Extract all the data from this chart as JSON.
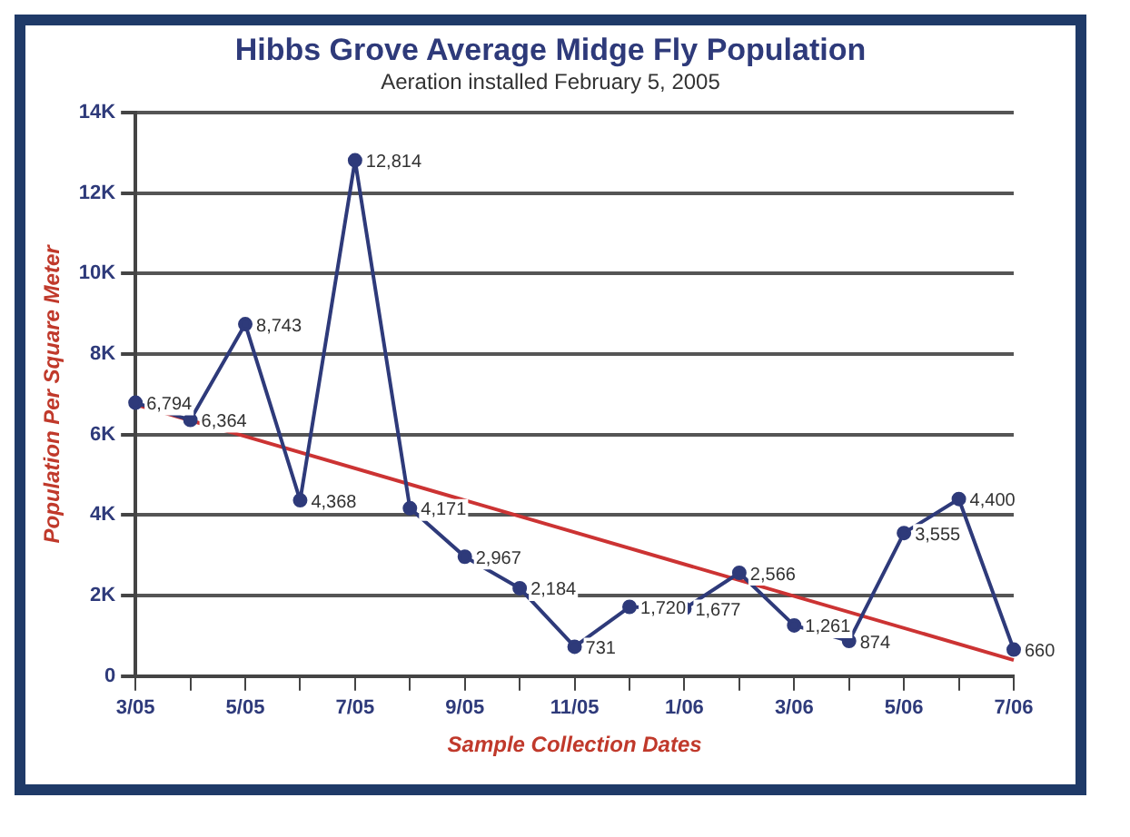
{
  "chart_data": {
    "type": "line",
    "title": "Hibbs Grove Average Midge Fly Population",
    "subtitle": "Aeration installed February 5, 2005",
    "xlabel": "Sample Collection Dates",
    "ylabel": "Population Per Square Meter",
    "categories": [
      "3/05",
      null,
      "5/05",
      null,
      "7/05",
      null,
      "9/05",
      null,
      "11/05",
      null,
      "1/06",
      null,
      "3/06",
      null,
      "5/06",
      null,
      "7/06"
    ],
    "series": [
      {
        "color": "#2e3a7a",
        "marker": "circle",
        "values": [
          6794,
          6364,
          8743,
          4368,
          12814,
          4171,
          2967,
          2184,
          731,
          1720,
          1677,
          2566,
          1261,
          874,
          3555,
          4400,
          660
        ],
        "value_labels": [
          "6,794",
          "6,364",
          "8,743",
          "4,368",
          "12,814",
          "4,171",
          "2,967",
          "2,184",
          "731",
          "1,720",
          "1,677",
          "2,566",
          "1,261",
          "874",
          "3,555",
          "4,400",
          "660"
        ]
      },
      {
        "type": "line",
        "color": "#cc3333",
        "marker": "none",
        "values": [
          6750,
          null,
          null,
          null,
          null,
          null,
          null,
          null,
          null,
          null,
          null,
          null,
          null,
          null,
          null,
          null,
          400
        ]
      }
    ],
    "ylim": [
      0,
      14000
    ],
    "yticks": [
      0,
      {
        "value": 2000,
        "label": "2K"
      },
      {
        "value": 4000,
        "label": "4K"
      },
      {
        "value": 6000,
        "label": "6K"
      },
      {
        "value": 8000,
        "label": "8K"
      },
      {
        "value": 10000,
        "label": "10K"
      },
      {
        "value": 12000,
        "label": "12K"
      },
      {
        "value": 14000,
        "label": "14K"
      }
    ],
    "grid": "y",
    "legend": false
  }
}
